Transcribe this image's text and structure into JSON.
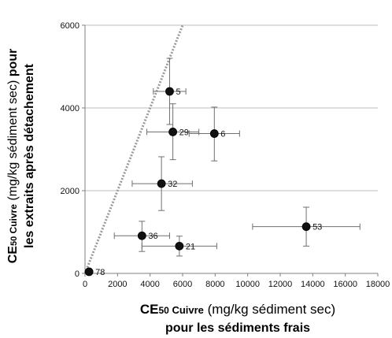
{
  "chart_data": {
    "type": "scatter",
    "xlim": [
      0,
      18000
    ],
    "ylim": [
      0,
      6000
    ],
    "x_ticks": [
      "0",
      "2000",
      "4000",
      "6000",
      "8000",
      "10000",
      "12000",
      "14000",
      "16000",
      "18000"
    ],
    "y_ticks": [
      "0",
      "2000",
      "4000",
      "6000"
    ],
    "grid": "horizontal",
    "legend": "none",
    "xlabel": {
      "line1_strong": "CE",
      "line1_sub": "50",
      "line1_small": " Cuivre",
      "line1_rest": " (mg/kg sédiment sec)",
      "line2": "pour les sédiments frais"
    },
    "ylabel": {
      "line1_strong": "CE",
      "line1_sub": "50",
      "line1_small": " Cuivre",
      "line1_rest": " (mg/kg sédiment sec) ",
      "line1_end": "pour",
      "line2": "les extraits après détachement"
    },
    "reference_line": {
      "x": [
        0,
        6000
      ],
      "y": [
        0,
        6000
      ],
      "style": "dotted"
    },
    "points": [
      {
        "label": "5",
        "x": 5200,
        "y": 4400,
        "xerr": [
          4200,
          6200
        ],
        "yerr": [
          3600,
          5200
        ]
      },
      {
        "label": "29",
        "x": 5400,
        "y": 3420,
        "xerr": [
          3800,
          7000
        ],
        "yerr": [
          2750,
          4100
        ]
      },
      {
        "label": "6",
        "x": 7950,
        "y": 3380,
        "xerr": [
          6400,
          9500
        ],
        "yerr": [
          2720,
          4020
        ]
      },
      {
        "label": "32",
        "x": 4700,
        "y": 2170,
        "xerr": [
          2900,
          6600
        ],
        "yerr": [
          1520,
          2820
        ]
      },
      {
        "label": "36",
        "x": 3500,
        "y": 910,
        "xerr": [
          1800,
          5200
        ],
        "yerr": [
          530,
          1260
        ]
      },
      {
        "label": "21",
        "x": 5800,
        "y": 660,
        "xerr": [
          3500,
          8100
        ],
        "yerr": [
          420,
          900
        ]
      },
      {
        "label": "53",
        "x": 13600,
        "y": 1130,
        "xerr": [
          10300,
          16900
        ],
        "yerr": [
          660,
          1600
        ]
      },
      {
        "label": "78",
        "x": 250,
        "y": 40,
        "xerr": [
          150,
          350
        ],
        "yerr": [
          20,
          60
        ]
      }
    ],
    "colors": {
      "marker": "#111111",
      "errorbar": "#6f6f6f",
      "grid": "#bdbdbd",
      "refline": "#9a9a9a",
      "axis": "#7f7f7f"
    }
  }
}
